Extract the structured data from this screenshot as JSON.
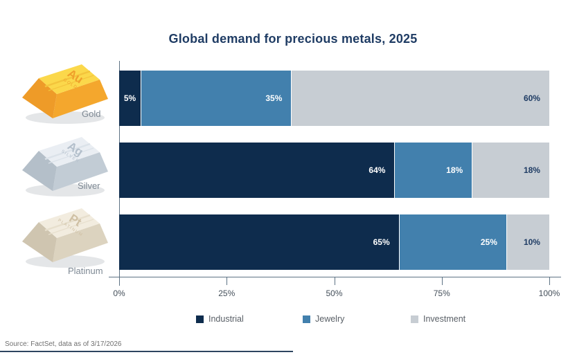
{
  "title": "Global demand for precious metals, 2025",
  "source": "Source: FactSet, data as of 3/17/2026",
  "chart_data": {
    "type": "bar",
    "orientation": "horizontal",
    "stacked": true,
    "unit": "%",
    "title": "Global demand for precious metals, 2025",
    "categories": [
      "Gold",
      "Silver",
      "Platinum"
    ],
    "series": [
      {
        "name": "Industrial",
        "color": "#0e2c4d",
        "values": [
          5,
          64,
          65
        ]
      },
      {
        "name": "Jewelry",
        "color": "#4280ad",
        "values": [
          35,
          18,
          25
        ]
      },
      {
        "name": "Investment",
        "color": "#c7cdd3",
        "values": [
          60,
          18,
          10
        ]
      }
    ],
    "data_label_format": "{value}%",
    "x_tick_labels": [
      "0%",
      "25%",
      "50%",
      "75%",
      "100%"
    ],
    "x_tick_values": [
      0,
      25,
      50,
      75,
      100
    ],
    "xlim": [
      0,
      100
    ],
    "grid": false,
    "legend_position": "bottom"
  },
  "metals": [
    {
      "label": "Gold",
      "symbol": "Au",
      "caption": "GOLD",
      "colors": {
        "top": "#fbd84b",
        "stripe": "#f3c43c",
        "front": "#f4a72d",
        "end": "#ee9b28",
        "text": "#ef9f2b"
      }
    },
    {
      "label": "Silver",
      "symbol": "Ag",
      "caption": "SILVER",
      "colors": {
        "top": "#eaeef3",
        "stripe": "#dbe2e9",
        "front": "#c2ccd5",
        "end": "#b4bfc9",
        "text": "#b3bfcb"
      }
    },
    {
      "label": "Platinum",
      "symbol": "Pt",
      "caption": "PLATINUM",
      "colors": {
        "top": "#f2ecdf",
        "stripe": "#e7dfcd",
        "front": "#dcd3bf",
        "end": "#cfc5b0",
        "text": "#cfc0a4"
      }
    }
  ],
  "style": {
    "background": "#ffffff",
    "title_color": "#1f3c64",
    "axis_color": "#5d7283",
    "tick_label_color": "#434e59",
    "data_label_light": "#ffffff",
    "data_label_dark": "#1f3c64",
    "legend_text_color": "#595f66",
    "metal_label_color": "#7e8994",
    "source_color": "#6f6f6f",
    "footer_rule_color": "#2e4560"
  }
}
